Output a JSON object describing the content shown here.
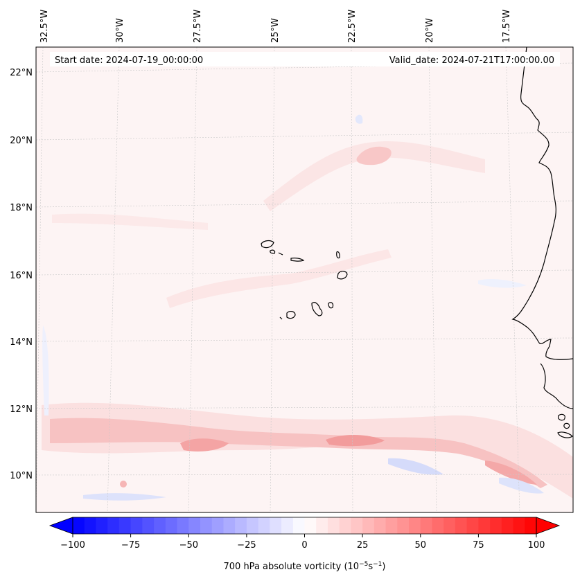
{
  "map": {
    "start_date_text": "Start date: 2024-07-19_00:00:00",
    "valid_date_text": "Valid_date: 2024-07-21T17:00:00.00",
    "lon_labels": [
      "32.5°W",
      "30°W",
      "27.5°W",
      "25°W",
      "22.5°W",
      "20°W",
      "17.5°W"
    ],
    "lat_labels": [
      "22°N",
      "20°N",
      "18°N",
      "16°N",
      "14°N",
      "12°N",
      "10°N"
    ],
    "field": "700 hPa absolute vorticity"
  },
  "colorbar": {
    "ticks": [
      "−100",
      "−75",
      "−50",
      "−25",
      "0",
      "25",
      "50",
      "75",
      "100"
    ],
    "label_main": "700 hPa absolute vorticity (10",
    "label_exp1": "−5",
    "label_mid": "s",
    "label_exp2": "−1",
    "label_end": ")",
    "min": -100,
    "max": 100,
    "step": 5,
    "low_color": "#0000ff",
    "mid_color": "#ffffff",
    "high_color": "#ff0000"
  },
  "colors": {
    "background": "#fdf4f4",
    "coast": "#000000",
    "grid": "#c8c8c8"
  }
}
